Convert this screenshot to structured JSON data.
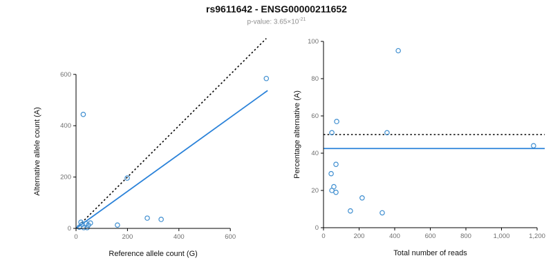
{
  "header": {
    "title": "rs9611642 - ENSG00000211652",
    "pvalue_label": "p-value: 3.65×10",
    "pvalue_exponent": "-21"
  },
  "colors": {
    "point": "#3e8ed0",
    "fit_line": "#2a82d9",
    "reference_line": "#000000",
    "tick_label": "#6e6e6e",
    "axis": "#000000"
  },
  "chart_data": [
    {
      "type": "scatter",
      "panel": "left",
      "xlabel": "Reference allele count (G)",
      "ylabel": "Alternative allele count (A)",
      "xlim": [
        0,
        750
      ],
      "ylim": [
        0,
        745
      ],
      "grid": false,
      "xticks": {
        "values": [
          0,
          200,
          400,
          600
        ],
        "labels": [
          "0",
          "200",
          "400",
          "600"
        ]
      },
      "yticks": {
        "values": [
          0,
          200,
          400,
          600
        ],
        "labels": [
          "0",
          "200",
          "400",
          "600"
        ]
      },
      "points": [
        [
          28,
          444
        ],
        [
          740,
          584
        ],
        [
          199,
          196
        ],
        [
          277,
          40
        ],
        [
          331,
          35
        ],
        [
          161,
          13
        ],
        [
          13,
          5
        ],
        [
          19,
          24
        ],
        [
          24,
          16
        ],
        [
          30,
          3
        ],
        [
          38,
          19
        ],
        [
          43,
          3
        ],
        [
          48,
          13
        ],
        [
          56,
          21
        ]
      ],
      "lines": [
        {
          "name": "identity-line",
          "x1": 0,
          "y1": 0,
          "x2": 740,
          "y2": 740,
          "style": "dotted",
          "color": "#000000"
        },
        {
          "name": "fit-line",
          "x1": 0,
          "y1": 0,
          "x2": 745,
          "y2": 537,
          "style": "solid",
          "color": "#2a82d9"
        }
      ]
    },
    {
      "type": "scatter",
      "panel": "right",
      "xlabel": "Total number of reads",
      "ylabel": "Percentage alternative (A)",
      "xlim": [
        0,
        1245
      ],
      "ylim": [
        0,
        102
      ],
      "grid": false,
      "xticks": {
        "values": [
          0,
          200,
          400,
          600,
          800,
          1000,
          1200
        ],
        "labels": [
          "0",
          "200",
          "400",
          "600",
          "800",
          "1,000",
          "1,200"
        ]
      },
      "yticks": {
        "values": [
          0,
          20,
          40,
          60,
          80,
          100
        ],
        "labels": [
          "0",
          "20",
          "40",
          "60",
          "80",
          "100"
        ]
      },
      "points": [
        [
          420,
          95
        ],
        [
          1180,
          44
        ],
        [
          357,
          51
        ],
        [
          74,
          57
        ],
        [
          47,
          51
        ],
        [
          70,
          34
        ],
        [
          43,
          29
        ],
        [
          58,
          22
        ],
        [
          47,
          20
        ],
        [
          70,
          19
        ],
        [
          217,
          16
        ],
        [
          151,
          9
        ],
        [
          330,
          8
        ]
      ],
      "lines": [
        {
          "name": "expected-line",
          "x1": 0,
          "y1": 50,
          "x2": 1243,
          "y2": 50,
          "style": "dotted",
          "color": "#000000"
        },
        {
          "name": "fit-line",
          "x1": 0,
          "y1": 42.5,
          "x2": 1243,
          "y2": 42.5,
          "style": "solid",
          "color": "#2a82d9"
        }
      ]
    }
  ]
}
